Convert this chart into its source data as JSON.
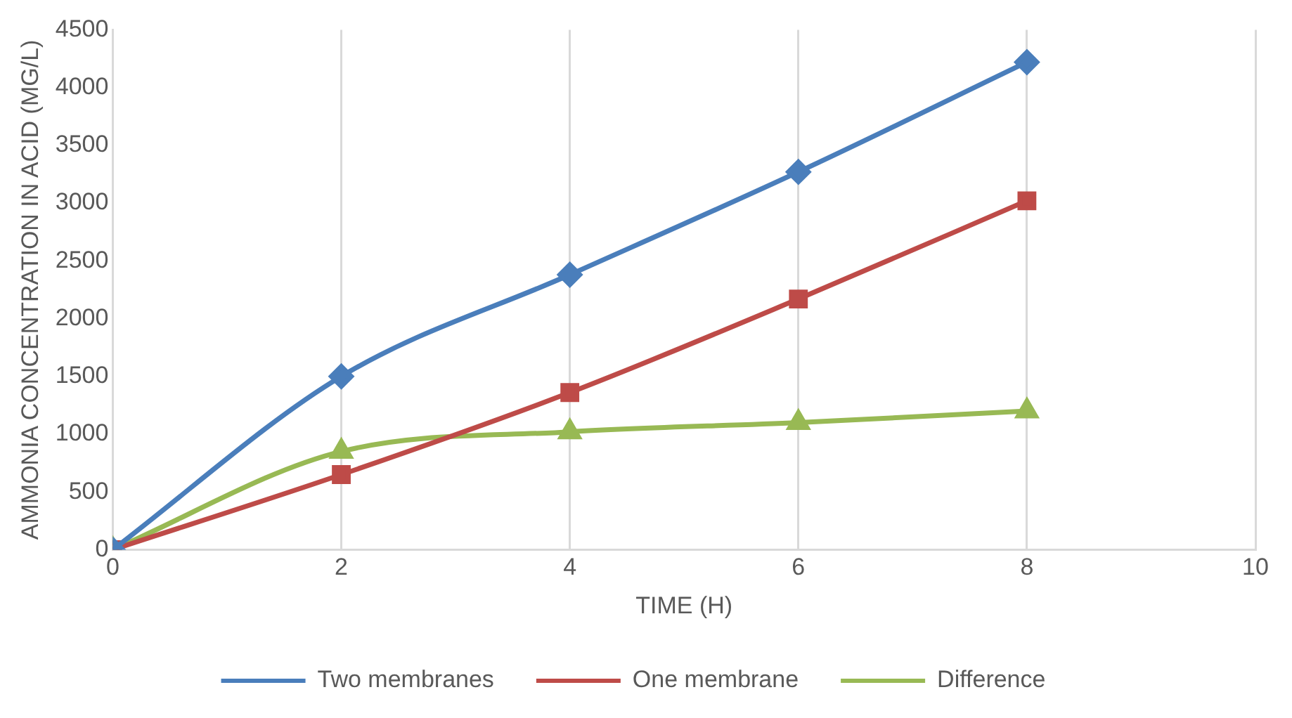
{
  "chart_data": {
    "type": "line",
    "xlabel": "TIME (H)",
    "ylabel": "AMMONIA CONCENTRATION IN ACID (MG/L)",
    "xlim": [
      0,
      10
    ],
    "xticks": [
      0,
      2,
      4,
      6,
      8,
      10
    ],
    "ylim": [
      0,
      4500
    ],
    "yticks": [
      0,
      500,
      1000,
      1500,
      2000,
      2500,
      3000,
      3500,
      4000,
      4500
    ],
    "grid": "x",
    "legend": "bottom",
    "series": [
      {
        "name": "Two membranes",
        "color": "#4a7ebb",
        "marker": "diamond",
        "x": [
          0,
          2,
          4,
          6,
          8
        ],
        "values": [
          0,
          1500,
          2380,
          3270,
          4220
        ]
      },
      {
        "name": "One membrane",
        "color": "#be4b48",
        "marker": "square",
        "x": [
          0,
          2,
          4,
          6,
          8
        ],
        "values": [
          0,
          650,
          1360,
          2170,
          3020
        ]
      },
      {
        "name": "Difference",
        "color": "#98b954",
        "marker": "triangle",
        "x": [
          0,
          2,
          4,
          6,
          8
        ],
        "values": [
          0,
          850,
          1020,
          1100,
          1200
        ]
      }
    ]
  }
}
